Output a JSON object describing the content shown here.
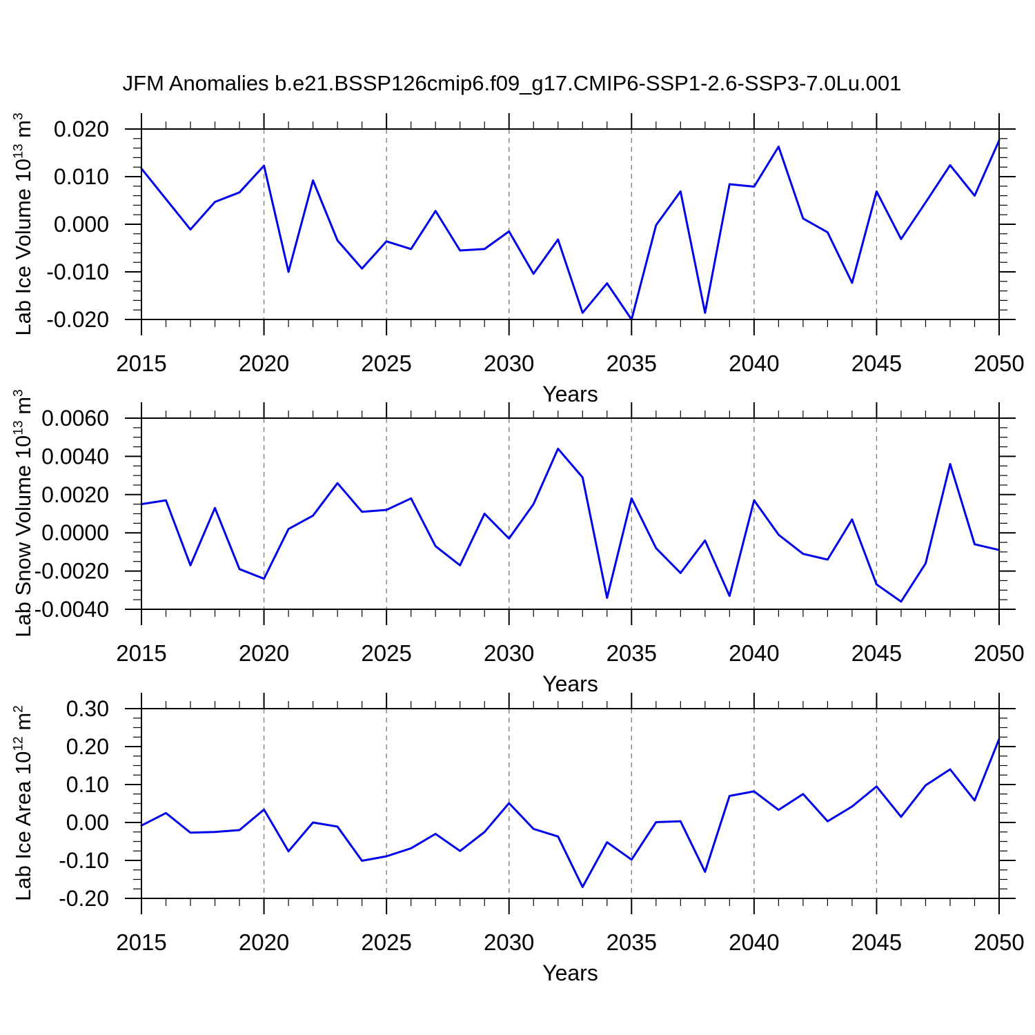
{
  "title": "JFM Anomalies b.e21.BSSP126cmip6.f09_g17.CMIP6-SSP1-2.6-SSP3-7.0Lu.001",
  "colors": {
    "line": "#0000EB",
    "grid": "#808080",
    "axis": "#000000",
    "background": "#ffffff"
  },
  "chart_data": [
    {
      "type": "line",
      "name": "lab-ice-volume",
      "ylabel": {
        "prefix": "Lab Ice Volume 10",
        "exp": "13",
        "unit": " m",
        "unit_exp": "3"
      },
      "xlabel": "Years",
      "xlim": [
        2015,
        2050
      ],
      "ylim": [
        -0.02,
        0.02
      ],
      "x": [
        2015,
        2016,
        2017,
        2018,
        2019,
        2020,
        2021,
        2022,
        2023,
        2024,
        2025,
        2026,
        2027,
        2028,
        2029,
        2030,
        2031,
        2032,
        2033,
        2034,
        2035,
        2036,
        2037,
        2038,
        2039,
        2040,
        2041,
        2042,
        2043,
        2044,
        2045,
        2046,
        2047,
        2048,
        2049,
        2050
      ],
      "values": [
        0.0117,
        0.0053,
        -0.0011,
        0.0047,
        0.0067,
        0.0123,
        -0.01,
        0.0092,
        -0.0034,
        -0.0093,
        -0.0036,
        -0.0052,
        0.0028,
        -0.0055,
        -0.0052,
        -0.0015,
        -0.0104,
        -0.0032,
        -0.0186,
        -0.0124,
        -0.02,
        -0.0002,
        0.0069,
        -0.0186,
        0.0084,
        0.0079,
        0.0163,
        0.0012,
        -0.0017,
        -0.0123,
        0.0069,
        -0.0031,
        0.0046,
        0.0124,
        0.006,
        0.0176
      ],
      "yticks": [
        0.02,
        0.01,
        0.0,
        -0.01,
        -0.02
      ],
      "ytick_labels": [
        "0.020",
        "0.010",
        "0.000",
        "-0.010",
        "-0.020"
      ],
      "y_minor_step": 0.002,
      "xticks": [
        2015,
        2020,
        2025,
        2030,
        2035,
        2040,
        2045,
        2050
      ],
      "xtick_labels": [
        "2015",
        "2020",
        "2025",
        "2030",
        "2035",
        "2040",
        "2045",
        "2050"
      ],
      "x_minor_step": 1,
      "grid_x": [
        2020,
        2025,
        2030,
        2035,
        2040,
        2045
      ]
    },
    {
      "type": "line",
      "name": "lab-snow-volume",
      "ylabel": {
        "prefix": "Lab Snow Volume 10",
        "exp": "13",
        "unit": " m",
        "unit_exp": "3"
      },
      "xlabel": "Years",
      "xlim": [
        2015,
        2050
      ],
      "ylim": [
        -0.004,
        0.006
      ],
      "x": [
        2015,
        2016,
        2017,
        2018,
        2019,
        2020,
        2021,
        2022,
        2023,
        2024,
        2025,
        2026,
        2027,
        2028,
        2029,
        2030,
        2031,
        2032,
        2033,
        2034,
        2035,
        2036,
        2037,
        2038,
        2039,
        2040,
        2041,
        2042,
        2043,
        2044,
        2045,
        2046,
        2047,
        2048,
        2049,
        2050
      ],
      "values": [
        0.0015,
        0.0017,
        -0.0017,
        0.0013,
        -0.0019,
        -0.0024,
        0.0002,
        0.0009,
        0.0026,
        0.0011,
        0.0012,
        0.0018,
        -0.0007,
        -0.0017,
        0.001,
        -0.0003,
        0.0015,
        0.0044,
        0.0029,
        -0.0034,
        0.0018,
        -0.0008,
        -0.0021,
        -0.0004,
        -0.0033,
        0.0017,
        -0.0001,
        -0.0011,
        -0.0014,
        0.0007,
        -0.0027,
        -0.0036,
        -0.0016,
        0.0036,
        -0.0006,
        -0.0009
      ],
      "yticks": [
        0.006,
        0.004,
        0.002,
        0.0,
        -0.002,
        -0.004
      ],
      "ytick_labels": [
        "0.0060",
        "0.0040",
        "0.0020",
        "0.0000",
        "-0.0020",
        "-0.0040"
      ],
      "y_minor_step": 0.0005,
      "xticks": [
        2015,
        2020,
        2025,
        2030,
        2035,
        2040,
        2045,
        2050
      ],
      "xtick_labels": [
        "2015",
        "2020",
        "2025",
        "2030",
        "2035",
        "2040",
        "2045",
        "2050"
      ],
      "x_minor_step": 1,
      "grid_x": [
        2020,
        2025,
        2030,
        2035,
        2040,
        2045
      ]
    },
    {
      "type": "line",
      "name": "lab-ice-area",
      "ylabel": {
        "prefix": "Lab Ice Area 10",
        "exp": "12",
        "unit": " m",
        "unit_exp": "2"
      },
      "xlabel": "Years",
      "xlim": [
        2015,
        2050
      ],
      "ylim": [
        -0.2,
        0.3
      ],
      "x": [
        2015,
        2016,
        2017,
        2018,
        2019,
        2020,
        2021,
        2022,
        2023,
        2024,
        2025,
        2026,
        2027,
        2028,
        2029,
        2030,
        2031,
        2032,
        2033,
        2034,
        2035,
        2036,
        2037,
        2038,
        2039,
        2040,
        2041,
        2042,
        2043,
        2044,
        2045,
        2046,
        2047,
        2048,
        2049,
        2050
      ],
      "values": [
        -0.008,
        0.025,
        -0.027,
        -0.025,
        -0.02,
        0.034,
        -0.076,
        0.0,
        -0.011,
        -0.101,
        -0.089,
        -0.068,
        -0.03,
        -0.075,
        -0.025,
        0.051,
        -0.017,
        -0.037,
        -0.17,
        -0.052,
        -0.098,
        0.001,
        0.003,
        -0.13,
        0.07,
        0.082,
        0.033,
        0.075,
        0.003,
        0.042,
        0.095,
        0.015,
        0.098,
        0.14,
        0.058,
        0.22
      ],
      "yticks": [
        0.3,
        0.2,
        0.1,
        0.0,
        -0.1,
        -0.2
      ],
      "ytick_labels": [
        "0.30",
        "0.20",
        "0.10",
        "0.00",
        "-0.10",
        "-0.20"
      ],
      "y_minor_step": 0.025,
      "xticks": [
        2015,
        2020,
        2025,
        2030,
        2035,
        2040,
        2045,
        2050
      ],
      "xtick_labels": [
        "2015",
        "2020",
        "2025",
        "2030",
        "2035",
        "2040",
        "2045",
        "2050"
      ],
      "x_minor_step": 1,
      "grid_x": [
        2020,
        2025,
        2030,
        2035,
        2040,
        2045
      ]
    }
  ]
}
